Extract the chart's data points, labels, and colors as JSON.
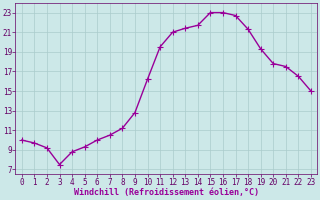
{
  "x": [
    0,
    1,
    2,
    3,
    4,
    5,
    6,
    7,
    8,
    9,
    10,
    11,
    12,
    13,
    14,
    15,
    16,
    17,
    18,
    19,
    20,
    21,
    22,
    23
  ],
  "y": [
    10.0,
    9.7,
    9.2,
    7.5,
    8.8,
    9.3,
    10.0,
    10.5,
    11.2,
    12.8,
    16.2,
    19.5,
    21.0,
    21.4,
    21.7,
    23.0,
    23.0,
    22.7,
    21.3,
    19.3,
    17.8,
    17.5,
    16.5,
    15.0
  ],
  "line_color": "#990099",
  "marker": "D",
  "marker_size": 2.0,
  "bg_color": "#cce8e8",
  "grid_color": "#aacccc",
  "xlabel": "Windchill (Refroidissement éolien,°C)",
  "xlabel_color": "#990099",
  "yticks": [
    7,
    9,
    11,
    13,
    15,
    17,
    19,
    21,
    23
  ],
  "xticks": [
    0,
    1,
    2,
    3,
    4,
    5,
    6,
    7,
    8,
    9,
    10,
    11,
    12,
    13,
    14,
    15,
    16,
    17,
    18,
    19,
    20,
    21,
    22,
    23
  ],
  "ylim": [
    6.5,
    24.0
  ],
  "xlim": [
    -0.5,
    23.5
  ],
  "axis_color": "#660066",
  "tick_fontsize": 5.5,
  "xlabel_fontsize": 6.0,
  "linewidth": 1.0
}
